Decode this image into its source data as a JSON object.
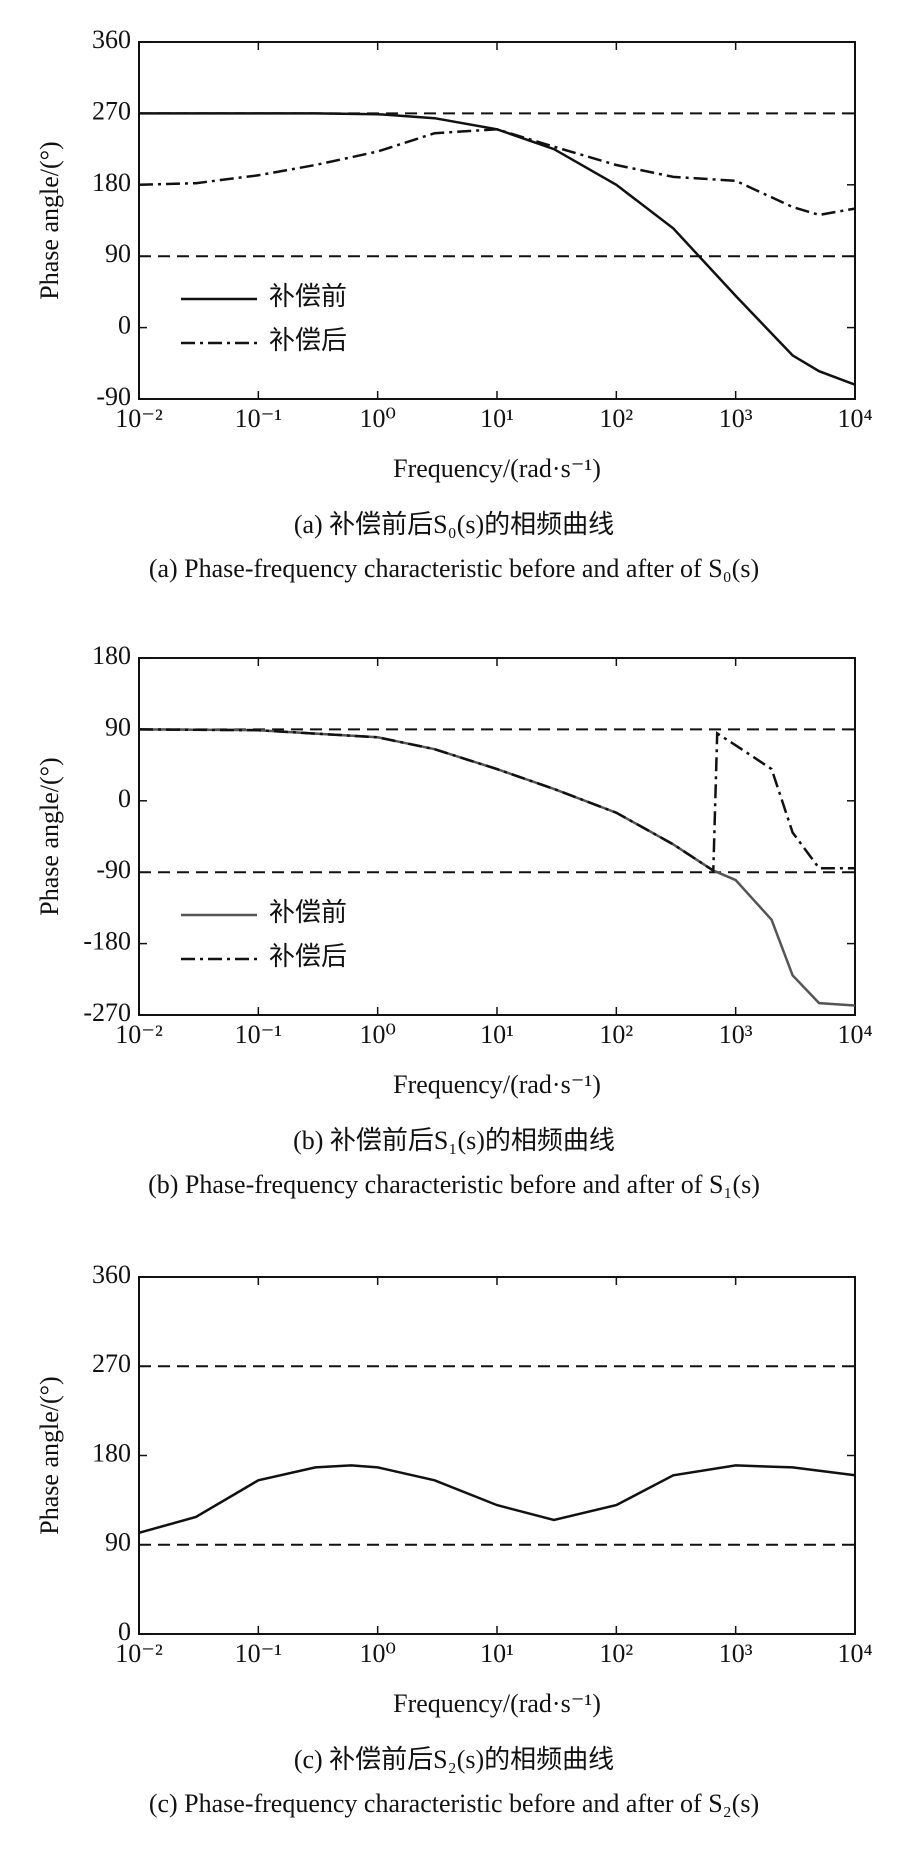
{
  "chart_data": [
    {
      "type": "line",
      "log_x": true,
      "xlabel": "Frequency/(rad·s⁻¹)",
      "ylabel": "Phase angle/(°)",
      "captions": [
        "(a) 补偿前后S₀(s)的相频曲线",
        "(a) Phase-frequency characteristic before and after of S₀(s)"
      ],
      "x": [
        0.01,
        0.03,
        0.1,
        0.3,
        1,
        3,
        10,
        30,
        100,
        300,
        1000,
        3000,
        5000,
        10000
      ],
      "series": [
        {
          "name": "补偿前",
          "color": "#111111",
          "dash": "solid",
          "values": [
            270,
            270,
            270,
            270,
            269,
            264,
            250,
            225,
            180,
            125,
            40,
            -35,
            -55,
            -72
          ]
        },
        {
          "name": "补偿后",
          "color": "#111111",
          "dash": "dash-dot",
          "values": [
            180,
            182,
            192,
            205,
            222,
            245,
            250,
            228,
            205,
            190,
            185,
            152,
            142,
            150
          ]
        }
      ],
      "xlim": [
        0.01,
        10000
      ],
      "xticks": [
        {
          "value": 0.01,
          "label": "10⁻²"
        },
        {
          "value": 0.1,
          "label": "10⁻¹"
        },
        {
          "value": 1,
          "label": "10⁰"
        },
        {
          "value": 10,
          "label": "10¹"
        },
        {
          "value": 100,
          "label": "10²"
        },
        {
          "value": 1000,
          "label": "10³"
        },
        {
          "value": 10000,
          "label": "10⁴"
        }
      ],
      "ylim": [
        -90,
        360
      ],
      "yticks": [
        -90,
        0,
        90,
        180,
        270,
        360
      ],
      "reference_lines": [
        270,
        90
      ],
      "legend": "lower left"
    },
    {
      "type": "line",
      "log_x": true,
      "xlabel": "Frequency/(rad·s⁻¹)",
      "ylabel": "Phase angle/(°)",
      "captions": [
        "(b) 补偿前后S₁(s)的相频曲线",
        "(b) Phase-frequency characteristic before and after of S₁(s)"
      ],
      "x": [
        0.01,
        0.1,
        1,
        3,
        10,
        30,
        100,
        300,
        650,
        700,
        1000,
        2000,
        3000,
        5000,
        10000
      ],
      "series": [
        {
          "name": "补偿前",
          "color": "#555555",
          "dash": "solid",
          "values": [
            90,
            89,
            80,
            65,
            40,
            15,
            -15,
            -55,
            -88,
            -90,
            -100,
            -150,
            -220,
            -255,
            -258
          ]
        },
        {
          "name": "补偿后",
          "color": "#111111",
          "dash": "dash-dot",
          "values": [
            90,
            89,
            80,
            65,
            40,
            15,
            -15,
            -55,
            -88,
            85,
            70,
            40,
            -40,
            -85,
            -85
          ]
        }
      ],
      "xlim": [
        0.01,
        10000
      ],
      "xticks": [
        {
          "value": 0.01,
          "label": "10⁻²"
        },
        {
          "value": 0.1,
          "label": "10⁻¹"
        },
        {
          "value": 1,
          "label": "10⁰"
        },
        {
          "value": 10,
          "label": "10¹"
        },
        {
          "value": 100,
          "label": "10²"
        },
        {
          "value": 1000,
          "label": "10³"
        },
        {
          "value": 10000,
          "label": "10⁴"
        }
      ],
      "ylim": [
        -270,
        180
      ],
      "yticks": [
        -270,
        -180,
        -90,
        0,
        90,
        180
      ],
      "reference_lines": [
        90,
        -90
      ],
      "legend": "lower left"
    },
    {
      "type": "line",
      "log_x": true,
      "xlabel": "Frequency/(rad·s⁻¹)",
      "ylabel": "Phase angle/(°)",
      "captions": [
        "(c) 补偿前后S₂(s)的相频曲线",
        "(c) Phase-frequency characteristic before and after of S₂(s)"
      ],
      "x": [
        0.01,
        0.03,
        0.1,
        0.3,
        0.6,
        1,
        3,
        10,
        30,
        100,
        300,
        1000,
        3000,
        10000
      ],
      "series": [
        {
          "color": "#111111",
          "dash": "solid",
          "values": [
            102,
            118,
            155,
            168,
            170,
            168,
            155,
            130,
            115,
            130,
            160,
            170,
            168,
            160
          ]
        }
      ],
      "xlim": [
        0.01,
        10000
      ],
      "xticks": [
        {
          "value": 0.01,
          "label": "10⁻²"
        },
        {
          "value": 0.1,
          "label": "10⁻¹"
        },
        {
          "value": 1,
          "label": "10⁰"
        },
        {
          "value": 10,
          "label": "10¹"
        },
        {
          "value": 100,
          "label": "10²"
        },
        {
          "value": 1000,
          "label": "10³"
        },
        {
          "value": 10000,
          "label": "10⁴"
        }
      ],
      "ylim": [
        0,
        360
      ],
      "yticks": [
        0,
        90,
        180,
        270,
        360
      ],
      "reference_lines": [
        270,
        90
      ]
    }
  ]
}
